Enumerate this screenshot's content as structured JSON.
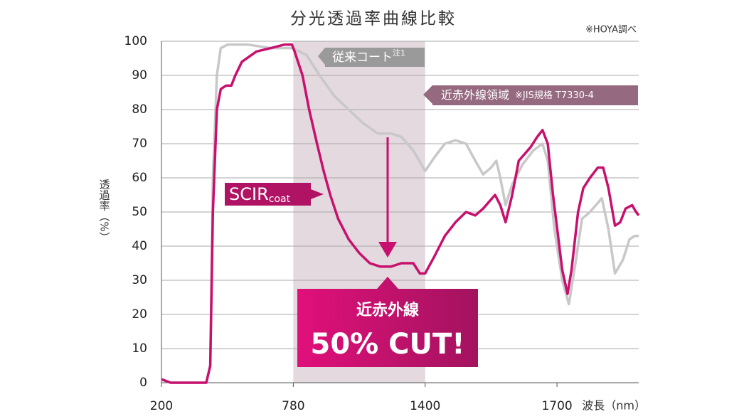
{
  "chart_data": {
    "type": "line",
    "title": "分光透過率曲線比較",
    "note": "※HOYA調べ",
    "y_label": "透過率（%）",
    "x_label": "波長（nm）",
    "xlim": [
      0,
      3.62
    ],
    "xticks": [
      {
        "value": 0,
        "label": "200"
      },
      {
        "value": 1,
        "label": "780"
      },
      {
        "value": 2,
        "label": "1400"
      },
      {
        "value": 3,
        "label": "1700"
      }
    ],
    "ylim": [
      0,
      100
    ],
    "yticks": [
      0,
      10,
      20,
      30,
      40,
      50,
      60,
      70,
      80,
      90,
      100
    ],
    "grid": true,
    "shaded_range": [
      1,
      2
    ],
    "shaded_color": "#e3d9de",
    "series": [
      {
        "name": "従来コート",
        "name_sup": "注1",
        "color": "#c8c8c8",
        "x": [
          0,
          0.07,
          0.34,
          0.37,
          0.39,
          0.42,
          0.45,
          0.5,
          0.66,
          0.83,
          0.99,
          1.1,
          1.2,
          1.31,
          1.42,
          1.53,
          1.64,
          1.74,
          1.82,
          1.91,
          2.0,
          2.07,
          2.15,
          2.23,
          2.31,
          2.38,
          2.44,
          2.5,
          2.54,
          2.57,
          2.61,
          2.66,
          2.74,
          2.82,
          2.89,
          2.93,
          2.98,
          3.04,
          3.09,
          3.14,
          3.19,
          3.25,
          3.34,
          3.39,
          3.44,
          3.5,
          3.55,
          3.59,
          3.62
        ],
        "values": [
          1,
          0,
          0,
          5,
          60,
          90,
          98,
          99,
          99,
          98,
          98,
          96,
          90,
          84,
          80,
          76,
          73,
          73,
          72,
          68,
          62,
          66,
          70,
          71,
          70,
          65,
          61,
          63,
          65,
          60,
          52,
          58,
          64,
          68,
          70,
          65,
          45,
          30,
          23,
          35,
          48,
          50,
          54,
          45,
          32,
          36,
          42,
          43,
          43
        ]
      },
      {
        "name": "SCIR",
        "name_sub": "coat",
        "color": "#c8106e",
        "x": [
          0,
          0.07,
          0.18,
          0.34,
          0.37,
          0.39,
          0.42,
          0.45,
          0.49,
          0.53,
          0.56,
          0.61,
          0.72,
          0.83,
          0.93,
          0.99,
          1.01,
          1.07,
          1.12,
          1.18,
          1.23,
          1.28,
          1.34,
          1.42,
          1.5,
          1.58,
          1.66,
          1.74,
          1.82,
          1.91,
          1.96,
          2.0,
          2.07,
          2.15,
          2.23,
          2.31,
          2.38,
          2.44,
          2.53,
          2.57,
          2.61,
          2.66,
          2.71,
          2.8,
          2.85,
          2.89,
          2.93,
          2.97,
          3.04,
          3.08,
          3.11,
          3.16,
          3.2,
          3.25,
          3.31,
          3.35,
          3.39,
          3.44,
          3.48,
          3.52,
          3.57,
          3.6,
          3.62
        ],
        "values": [
          1,
          0,
          0,
          0,
          5,
          50,
          80,
          86,
          87,
          87,
          90,
          94,
          97,
          98,
          99,
          99,
          97,
          90,
          80,
          70,
          62,
          55,
          48,
          42,
          38,
          35,
          34,
          34,
          35,
          35,
          32,
          32,
          37,
          43,
          47,
          50,
          49,
          51,
          55,
          52,
          47,
          55,
          65,
          69,
          72,
          74,
          70,
          55,
          33,
          26,
          33,
          50,
          57,
          60,
          63,
          63,
          57,
          46,
          47,
          51,
          52,
          50,
          49
        ]
      }
    ],
    "region_label": "近赤外線領域",
    "region_note": "※JIS規格 T7330-4",
    "callout_line1": "近赤外線",
    "callout_line2": "50% CUT!"
  }
}
